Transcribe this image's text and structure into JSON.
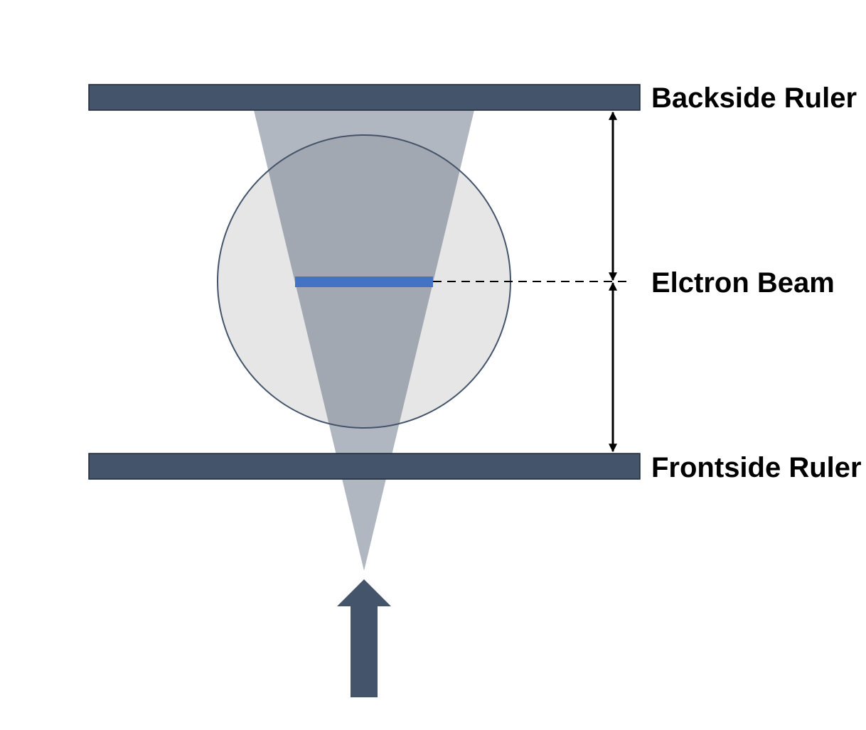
{
  "labels": {
    "backside_ruler": "Backside Ruler",
    "electron_beam": "Elctron Beam",
    "frontside_ruler": "Frontside Ruler"
  },
  "colors": {
    "ruler": "#44546A",
    "beam_cone": "#ADB4BF",
    "circle_fill": "#E6E6E6",
    "circle_stroke": "#44546A",
    "beam_bar": "#4472C4",
    "arrow": "#44546A",
    "dimension": "#000000"
  }
}
